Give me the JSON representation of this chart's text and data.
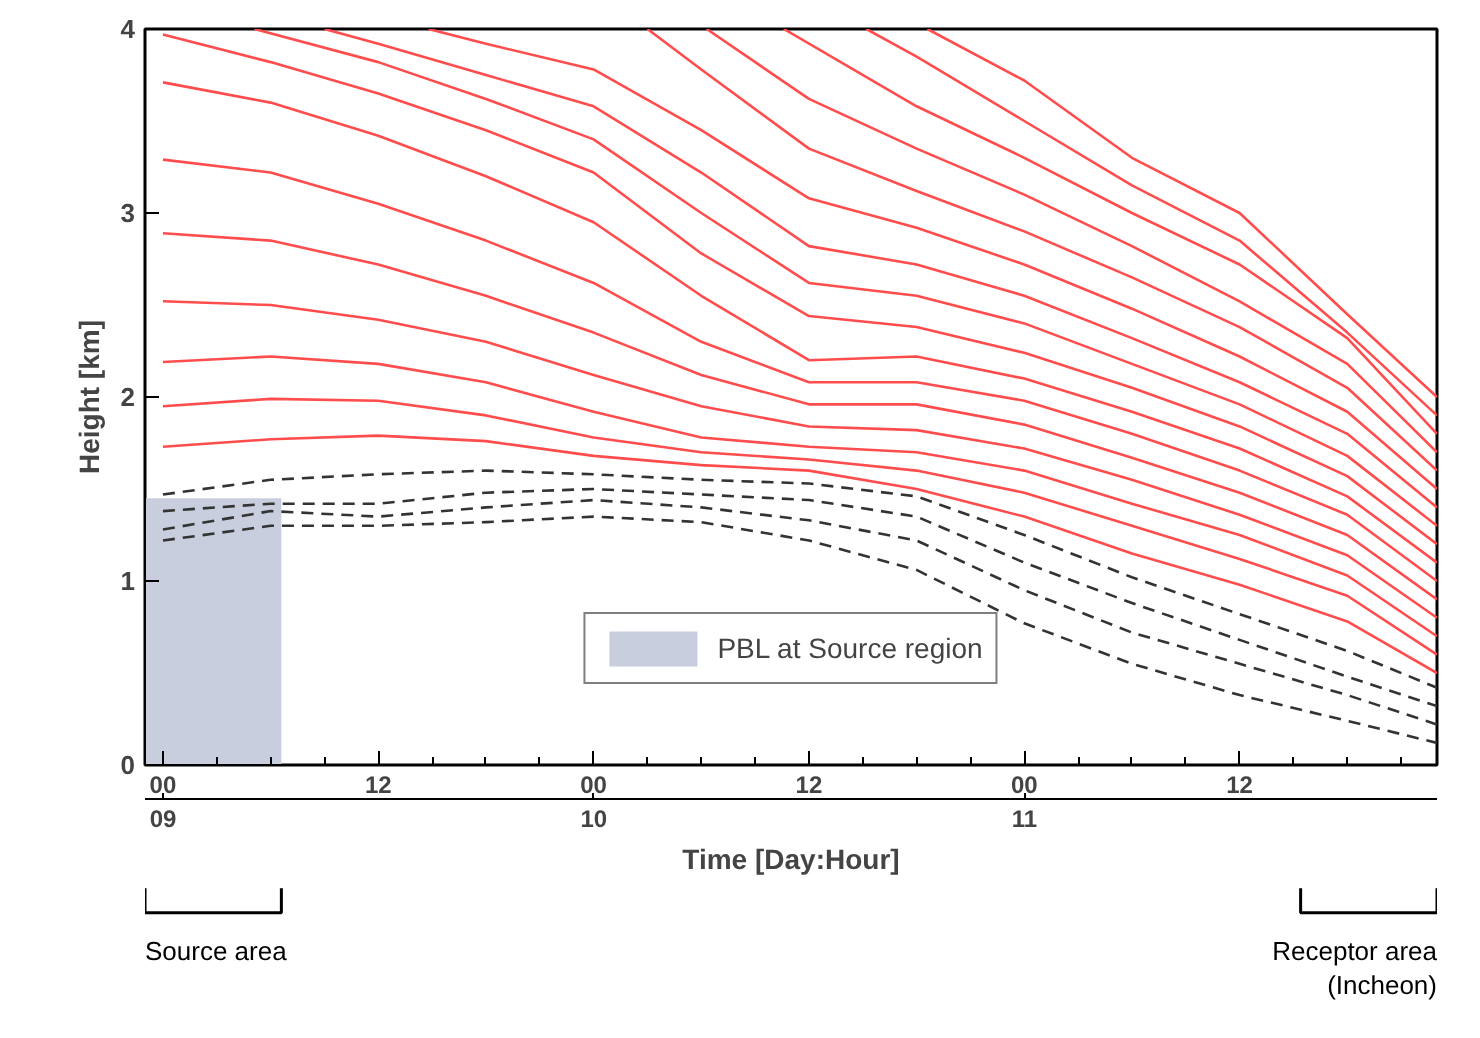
{
  "chart_data": {
    "type": "line",
    "ylabel": "Height [km]",
    "x2label": "Time [Day:Hour]",
    "xlim": [
      -1,
      71
    ],
    "ylim": [
      0,
      4
    ],
    "xticks": [
      {
        "value": 0,
        "label": "00"
      },
      {
        "value": 3,
        "label": null
      },
      {
        "value": 6,
        "label": null
      },
      {
        "value": 9,
        "label": null
      },
      {
        "value": 12,
        "label": "12"
      },
      {
        "value": 15,
        "label": null
      },
      {
        "value": 18,
        "label": null
      },
      {
        "value": 21,
        "label": null
      },
      {
        "value": 24,
        "label": "00"
      },
      {
        "value": 27,
        "label": null
      },
      {
        "value": 30,
        "label": null
      },
      {
        "value": 33,
        "label": null
      },
      {
        "value": 36,
        "label": "12"
      },
      {
        "value": 39,
        "label": null
      },
      {
        "value": 42,
        "label": null
      },
      {
        "value": 45,
        "label": null
      },
      {
        "value": 48,
        "label": "00"
      },
      {
        "value": 51,
        "label": null
      },
      {
        "value": 54,
        "label": null
      },
      {
        "value": 57,
        "label": null
      },
      {
        "value": 60,
        "label": "12"
      },
      {
        "value": 63,
        "label": null
      },
      {
        "value": 66,
        "label": null
      },
      {
        "value": 69,
        "label": null
      }
    ],
    "yticks": [
      0,
      1,
      2,
      3,
      4
    ],
    "x2lim": [
      8.958,
      11.958
    ],
    "x2ticks": [
      {
        "value": 9,
        "label": "09"
      },
      {
        "value": 10,
        "label": "10"
      },
      {
        "value": 11,
        "label": "11"
      }
    ],
    "legend": "bottom",
    "annotations": [
      "Source area",
      "Receptor area (Incheon)"
    ],
    "series": [
      {
        "type": "area",
        "name": "PBL at Source region",
        "color": "#c8cedd",
        "x": [
          -1,
          6.6
        ],
        "values": [
          1.45,
          1.45
        ]
      },
      {
        "color": "#ff4d4d",
        "x": [
          0,
          6,
          12,
          18,
          24,
          30,
          36,
          42,
          48,
          54,
          60,
          66,
          71
        ],
        "values": [
          3.97,
          3.82,
          3.65,
          3.45,
          3.22,
          2.78,
          2.44,
          2.38,
          2.24,
          2.05,
          1.84,
          1.57,
          1.2
        ]
      },
      {
        "color": "#ff4d4d",
        "x": [
          0,
          6,
          12,
          18,
          24,
          30,
          36,
          42,
          48,
          54,
          60,
          66,
          71
        ],
        "values": [
          3.71,
          3.6,
          3.42,
          3.2,
          2.95,
          2.55,
          2.2,
          2.22,
          2.1,
          1.92,
          1.72,
          1.46,
          1.1
        ]
      },
      {
        "color": "#ff4d4d",
        "x": [
          0,
          6,
          12,
          18,
          24,
          30,
          36,
          42,
          48,
          54,
          60,
          66,
          71
        ],
        "values": [
          3.29,
          3.22,
          3.05,
          2.85,
          2.62,
          2.3,
          2.08,
          2.08,
          1.98,
          1.8,
          1.6,
          1.36,
          1.0
        ]
      },
      {
        "color": "#ff4d4d",
        "x": [
          0,
          6,
          12,
          18,
          24,
          30,
          36,
          42,
          48,
          54,
          60,
          66,
          71
        ],
        "values": [
          2.89,
          2.85,
          2.72,
          2.55,
          2.35,
          2.12,
          1.96,
          1.96,
          1.85,
          1.67,
          1.48,
          1.25,
          0.9
        ]
      },
      {
        "color": "#ff4d4d",
        "x": [
          0,
          6,
          12,
          18,
          24,
          30,
          36,
          42,
          48,
          54,
          60,
          66,
          71
        ],
        "values": [
          2.52,
          2.5,
          2.42,
          2.3,
          2.12,
          1.95,
          1.84,
          1.82,
          1.72,
          1.55,
          1.36,
          1.14,
          0.8
        ]
      },
      {
        "color": "#ff4d4d",
        "x": [
          0,
          6,
          12,
          18,
          24,
          30,
          36,
          42,
          48,
          54,
          60,
          66,
          71
        ],
        "values": [
          2.19,
          2.22,
          2.18,
          2.08,
          1.92,
          1.78,
          1.73,
          1.7,
          1.6,
          1.42,
          1.25,
          1.03,
          0.7
        ]
      },
      {
        "color": "#ff4d4d",
        "x": [
          0,
          6,
          12,
          18,
          24,
          30,
          36,
          42,
          48,
          54,
          60,
          66,
          71
        ],
        "values": [
          1.95,
          1.99,
          1.98,
          1.9,
          1.78,
          1.7,
          1.66,
          1.6,
          1.48,
          1.3,
          1.12,
          0.92,
          0.6
        ]
      },
      {
        "color": "#ff4d4d",
        "x": [
          0,
          6,
          12,
          18,
          24,
          30,
          36,
          42,
          48,
          54,
          60,
          66,
          71
        ],
        "values": [
          1.73,
          1.77,
          1.79,
          1.76,
          1.68,
          1.63,
          1.6,
          1.5,
          1.35,
          1.15,
          0.98,
          0.78,
          0.5
        ]
      },
      {
        "color": "#ff4d4d",
        "x": [
          5.1,
          12,
          18,
          24,
          30,
          36,
          42,
          48,
          54,
          60,
          66,
          71
        ],
        "values": [
          4.0,
          3.82,
          3.62,
          3.4,
          3.0,
          2.62,
          2.55,
          2.4,
          2.18,
          1.96,
          1.68,
          1.3
        ]
      },
      {
        "color": "#ff4d4d",
        "x": [
          9,
          12,
          18,
          24,
          30,
          36,
          42,
          48,
          54,
          60,
          66,
          71
        ],
        "values": [
          4.0,
          3.92,
          3.75,
          3.58,
          3.22,
          2.82,
          2.72,
          2.55,
          2.32,
          2.08,
          1.8,
          1.4
        ]
      },
      {
        "color": "#ff4d4d",
        "x": [
          14.8,
          18,
          24,
          30,
          36,
          42,
          48,
          54,
          60,
          66,
          71
        ],
        "values": [
          4.0,
          3.92,
          3.78,
          3.45,
          3.08,
          2.92,
          2.72,
          2.48,
          2.22,
          1.92,
          1.5
        ]
      },
      {
        "color": "#ff4d4d",
        "x": [
          27,
          30,
          36,
          42,
          48,
          54,
          60,
          66,
          71
        ],
        "values": [
          4.0,
          3.78,
          3.35,
          3.12,
          2.9,
          2.65,
          2.38,
          2.05,
          1.6
        ]
      },
      {
        "color": "#ff4d4d",
        "x": [
          30.3,
          36,
          42,
          48,
          54,
          60,
          66,
          71
        ],
        "values": [
          4.0,
          3.62,
          3.35,
          3.1,
          2.82,
          2.52,
          2.18,
          1.7
        ]
      },
      {
        "color": "#ff4d4d",
        "x": [
          34.6,
          42,
          48,
          54,
          60,
          66,
          71
        ],
        "values": [
          4.0,
          3.58,
          3.3,
          3.0,
          2.72,
          2.32,
          1.8
        ]
      },
      {
        "color": "#ff4d4d",
        "x": [
          39.2,
          42,
          48,
          54,
          60,
          66,
          71
        ],
        "values": [
          4.0,
          3.85,
          3.5,
          3.15,
          2.85,
          2.35,
          1.9
        ]
      },
      {
        "color": "#ff4d4d",
        "x": [
          42.6,
          48,
          54,
          60,
          66,
          71
        ],
        "values": [
          4.0,
          3.72,
          3.3,
          3.0,
          2.45,
          2.0
        ]
      },
      {
        "color": "#333333",
        "line_style": "dashed",
        "x": [
          0,
          6,
          12,
          18,
          24,
          30,
          36,
          42,
          48,
          54,
          60,
          66,
          71
        ],
        "values": [
          1.47,
          1.55,
          1.58,
          1.6,
          1.58,
          1.55,
          1.53,
          1.46,
          1.25,
          1.02,
          0.82,
          0.62,
          0.42
        ]
      },
      {
        "color": "#333333",
        "line_style": "dashed",
        "x": [
          0,
          6,
          12,
          18,
          24,
          30,
          36,
          42,
          48,
          54,
          60,
          66,
          71
        ],
        "values": [
          1.38,
          1.42,
          1.42,
          1.48,
          1.5,
          1.47,
          1.44,
          1.35,
          1.1,
          0.88,
          0.68,
          0.48,
          0.32
        ]
      },
      {
        "color": "#333333",
        "line_style": "dashed",
        "x": [
          0,
          6,
          12,
          18,
          24,
          30,
          36,
          42,
          48,
          54,
          60,
          66,
          71
        ],
        "values": [
          1.28,
          1.38,
          1.35,
          1.4,
          1.44,
          1.4,
          1.33,
          1.22,
          0.95,
          0.72,
          0.55,
          0.38,
          0.22
        ]
      },
      {
        "color": "#333333",
        "line_style": "dashed",
        "x": [
          0,
          6,
          12,
          18,
          24,
          30,
          36,
          42,
          48,
          54,
          60,
          66,
          71
        ],
        "values": [
          1.22,
          1.3,
          1.3,
          1.32,
          1.35,
          1.32,
          1.22,
          1.06,
          0.77,
          0.55,
          0.38,
          0.24,
          0.12
        ]
      }
    ]
  }
}
